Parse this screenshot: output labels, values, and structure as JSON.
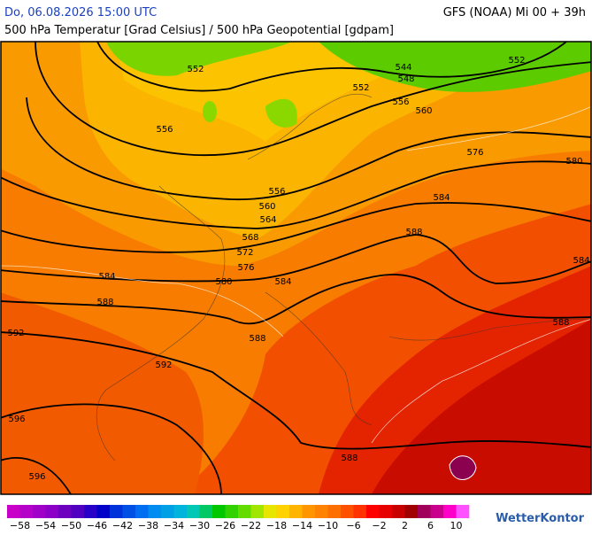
{
  "header": {
    "datetime": "Do, 06.08.2026 15:00 UTC",
    "model": "GFS (NOAA) Mi 00 + 39h",
    "subtitle": "500 hPa Temperatur [Grad Celsius] / 500 hPa Geopotential [gdpam]"
  },
  "contour_labels": [
    "552",
    "544",
    "548",
    "552",
    "552",
    "556",
    "560",
    "556",
    "576",
    "580",
    "556",
    "560",
    "564",
    "584",
    "568",
    "588",
    "572",
    "576",
    "580",
    "584",
    "584",
    "584",
    "588",
    "592",
    "588",
    "588",
    "592",
    "596",
    "588",
    "596"
  ],
  "legend": {
    "labels": [
      "−58",
      "−54",
      "−50",
      "−46",
      "−42",
      "−38",
      "−34",
      "−30",
      "−26",
      "−22",
      "−18",
      "−14",
      "−10",
      "−6",
      "−2",
      "2",
      "6",
      "10"
    ],
    "colors": [
      "#c800c8",
      "#b400c8",
      "#a000c8",
      "#8c00c8",
      "#6e00c0",
      "#5000c0",
      "#2800c8",
      "#0000c8",
      "#0032dc",
      "#0050e6",
      "#006ef0",
      "#008cf0",
      "#00a0e6",
      "#00b4dc",
      "#00c8b4",
      "#00c864",
      "#00c800",
      "#32d200",
      "#64dc00",
      "#a0e600",
      "#e6e600",
      "#ffd200",
      "#ffb400",
      "#ff9600",
      "#ff8200",
      "#ff6e00",
      "#ff5000",
      "#ff3200",
      "#ff0000",
      "#e60000",
      "#c80000",
      "#a00000",
      "#a0005a",
      "#c8008c",
      "#ff00c8",
      "#ff50ff"
    ]
  },
  "brand": "WetterKontor"
}
